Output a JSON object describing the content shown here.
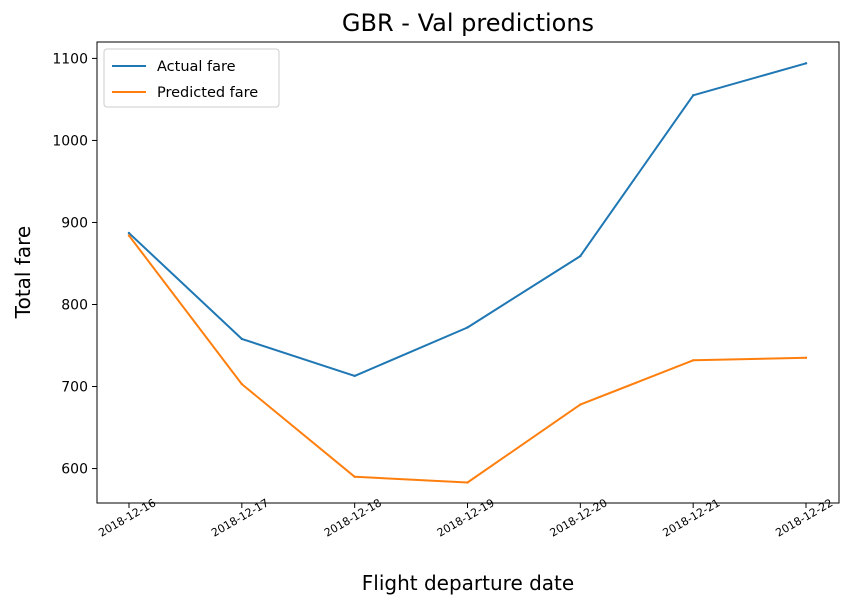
{
  "chart_data": {
    "type": "line",
    "title": "GBR - Val predictions",
    "xlabel": "Flight departure date",
    "ylabel": "Total fare",
    "x": [
      "2018-12-16",
      "2018-12-17",
      "2018-12-18",
      "2018-12-19",
      "2018-12-20",
      "2018-12-21",
      "2018-12-22"
    ],
    "yticks": [
      600,
      700,
      800,
      900,
      1000,
      1100
    ],
    "ylim": [
      558,
      1120
    ],
    "series": [
      {
        "name": "Actual fare",
        "color": "#1f77b4",
        "values": [
          887,
          758,
          713,
          772,
          859,
          1055,
          1094
        ]
      },
      {
        "name": "Predicted fare",
        "color": "#ff7f0e",
        "values": [
          884,
          703,
          590,
          583,
          678,
          732,
          735
        ]
      }
    ],
    "legend_position": "upper-left",
    "grid": false
  }
}
